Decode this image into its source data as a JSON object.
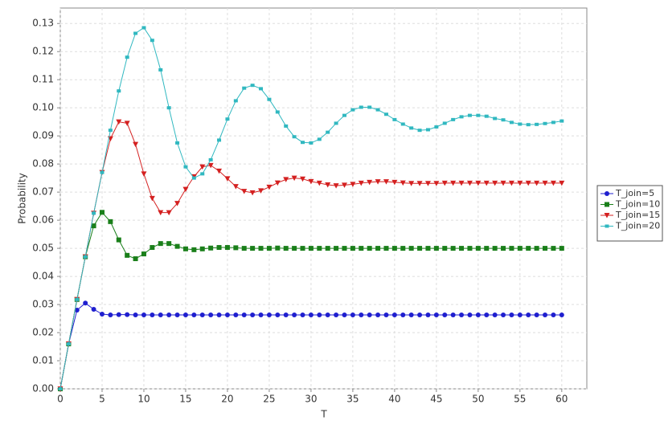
{
  "chart_data": {
    "type": "line",
    "x_label": "T",
    "y_label": "Probability",
    "x": [
      0,
      1,
      2,
      3,
      4,
      5,
      6,
      7,
      8,
      9,
      10,
      11,
      12,
      13,
      14,
      15,
      16,
      17,
      18,
      19,
      20,
      21,
      22,
      23,
      24,
      25,
      26,
      27,
      28,
      29,
      30,
      31,
      32,
      33,
      34,
      35,
      36,
      37,
      38,
      39,
      40,
      41,
      42,
      43,
      44,
      45,
      46,
      47,
      48,
      49,
      50,
      51,
      52,
      53,
      54,
      55,
      56,
      57,
      58,
      59,
      60
    ],
    "xlim": [
      0,
      63
    ],
    "xticks": [
      0,
      5,
      10,
      15,
      20,
      25,
      30,
      35,
      40,
      45,
      50,
      55,
      60
    ],
    "ylim": [
      0,
      0.1355
    ],
    "yticks": [
      {
        "value": 0,
        "label": "0.00"
      },
      0.01,
      0.02,
      0.03,
      0.04,
      0.05,
      0.06,
      0.07,
      0.08,
      0.09,
      {
        "value": 0.1,
        "label": "0.10"
      },
      0.11,
      0.12,
      0.13
    ],
    "grid": true,
    "legend": "right",
    "series": [
      {
        "name": "T_join=5",
        "color": "#1f1fcf",
        "marker": "circle",
        "values": [
          0,
          0.016,
          0.028,
          0.0305,
          0.0283,
          0.0266,
          0.0263,
          0.0264,
          0.0264,
          0.0263,
          0.0263,
          0.0263,
          0.0263,
          0.0263,
          0.0263,
          0.0263,
          0.0263,
          0.0263,
          0.0263,
          0.0263,
          0.0263,
          0.0263,
          0.0263,
          0.0263,
          0.0263,
          0.0263,
          0.0263,
          0.0263,
          0.0263,
          0.0263,
          0.0263,
          0.0263,
          0.0263,
          0.0263,
          0.0263,
          0.0263,
          0.0263,
          0.0263,
          0.0263,
          0.0263,
          0.0263,
          0.0263,
          0.0263,
          0.0263,
          0.0263,
          0.0263,
          0.0263,
          0.0263,
          0.0263,
          0.0263,
          0.0263,
          0.0263,
          0.0263,
          0.0263,
          0.0263,
          0.0263,
          0.0263,
          0.0263,
          0.0263,
          0.0263,
          0.0263
        ]
      },
      {
        "name": "T_join=10",
        "color": "#1a7f1a",
        "marker": "square",
        "values": [
          0,
          0.016,
          0.0318,
          0.047,
          0.058,
          0.0628,
          0.0595,
          0.053,
          0.0475,
          0.0463,
          0.048,
          0.0503,
          0.0517,
          0.0517,
          0.0507,
          0.0498,
          0.0495,
          0.0498,
          0.0501,
          0.0503,
          0.0503,
          0.0502,
          0.05,
          0.05,
          0.05,
          0.05,
          0.0501,
          0.05,
          0.05,
          0.05,
          0.05,
          0.05,
          0.05,
          0.05,
          0.05,
          0.05,
          0.05,
          0.05,
          0.05,
          0.05,
          0.05,
          0.05,
          0.05,
          0.05,
          0.05,
          0.05,
          0.05,
          0.05,
          0.05,
          0.05,
          0.05,
          0.05,
          0.05,
          0.05,
          0.05,
          0.05,
          0.05,
          0.05,
          0.05,
          0.05,
          0.05
        ]
      },
      {
        "name": "T_join=15",
        "color": "#d42020",
        "marker": "triangle-down",
        "values": [
          0,
          0.016,
          0.0318,
          0.047,
          0.0625,
          0.077,
          0.089,
          0.095,
          0.0945,
          0.087,
          0.0765,
          0.0678,
          0.0627,
          0.0627,
          0.066,
          0.071,
          0.0755,
          0.079,
          0.0795,
          0.0775,
          0.0748,
          0.072,
          0.0703,
          0.0698,
          0.0705,
          0.0718,
          0.0733,
          0.0745,
          0.075,
          0.0747,
          0.0738,
          0.0732,
          0.0726,
          0.0723,
          0.0725,
          0.0728,
          0.0732,
          0.0735,
          0.0737,
          0.0737,
          0.0735,
          0.0733,
          0.0731,
          0.0731,
          0.0731,
          0.0731,
          0.0732,
          0.0732,
          0.0732,
          0.0732,
          0.0732,
          0.0732,
          0.0732,
          0.0732,
          0.0732,
          0.0732,
          0.0732,
          0.0732,
          0.0732,
          0.0732,
          0.0732
        ]
      },
      {
        "name": "T_join=20",
        "color": "#30b8c0",
        "marker": "square-small",
        "values": [
          0,
          0.016,
          0.0318,
          0.047,
          0.0625,
          0.077,
          0.092,
          0.106,
          0.118,
          0.1265,
          0.1285,
          0.124,
          0.1135,
          0.1,
          0.0875,
          0.079,
          0.075,
          0.0765,
          0.0815,
          0.0885,
          0.096,
          0.1025,
          0.107,
          0.108,
          0.1068,
          0.103,
          0.0985,
          0.0935,
          0.0897,
          0.0877,
          0.0875,
          0.0888,
          0.0913,
          0.0945,
          0.0973,
          0.0993,
          0.1002,
          0.1002,
          0.0993,
          0.0977,
          0.0958,
          0.0942,
          0.0928,
          0.092,
          0.0922,
          0.0932,
          0.0945,
          0.0958,
          0.0968,
          0.0973,
          0.0973,
          0.097,
          0.0962,
          0.0957,
          0.0948,
          0.0942,
          0.094,
          0.0941,
          0.0944,
          0.0948,
          0.0953
        ]
      }
    ]
  }
}
